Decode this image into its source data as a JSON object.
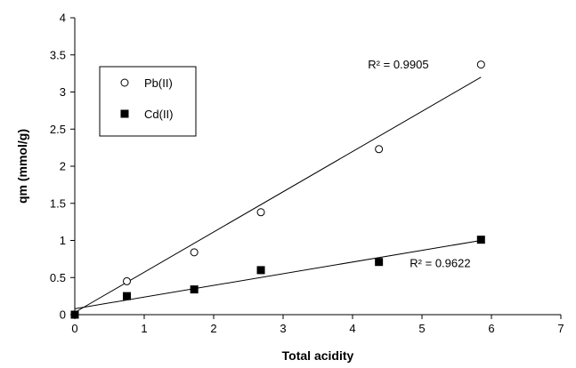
{
  "chart_data": {
    "type": "scatter",
    "xlabel": "Total acidity",
    "ylabel": "qm (mmol/g)",
    "xlim": [
      0,
      7
    ],
    "ylim": [
      0,
      4
    ],
    "x_ticks": [
      0,
      1,
      2,
      3,
      4,
      5,
      6,
      7
    ],
    "y_ticks": [
      0,
      0.5,
      1,
      1.5,
      2,
      2.5,
      3,
      3.5,
      4
    ],
    "grid": false,
    "legend_position": "top-left",
    "series": [
      {
        "name": "Pb(II)",
        "marker": "open-circle",
        "points": [
          [
            0,
            0
          ],
          [
            0.75,
            0.45
          ],
          [
            1.72,
            0.84
          ],
          [
            2.68,
            1.38
          ],
          [
            4.38,
            2.23
          ],
          [
            5.85,
            3.37
          ]
        ],
        "trendline": {
          "x0": 0,
          "y0": 0.03,
          "x1": 5.85,
          "y1": 3.2
        },
        "r2_label": "R² = 0.9905"
      },
      {
        "name": "Cd(II)",
        "marker": "filled-square",
        "points": [
          [
            0,
            0
          ],
          [
            0.75,
            0.25
          ],
          [
            1.72,
            0.34
          ],
          [
            2.68,
            0.6
          ],
          [
            4.38,
            0.71
          ],
          [
            5.85,
            1.01
          ]
        ],
        "trendline": {
          "x0": 0,
          "y0": 0.08,
          "x1": 5.85,
          "y1": 1.0
        },
        "r2_label": "R² = 0.9622"
      }
    ]
  }
}
